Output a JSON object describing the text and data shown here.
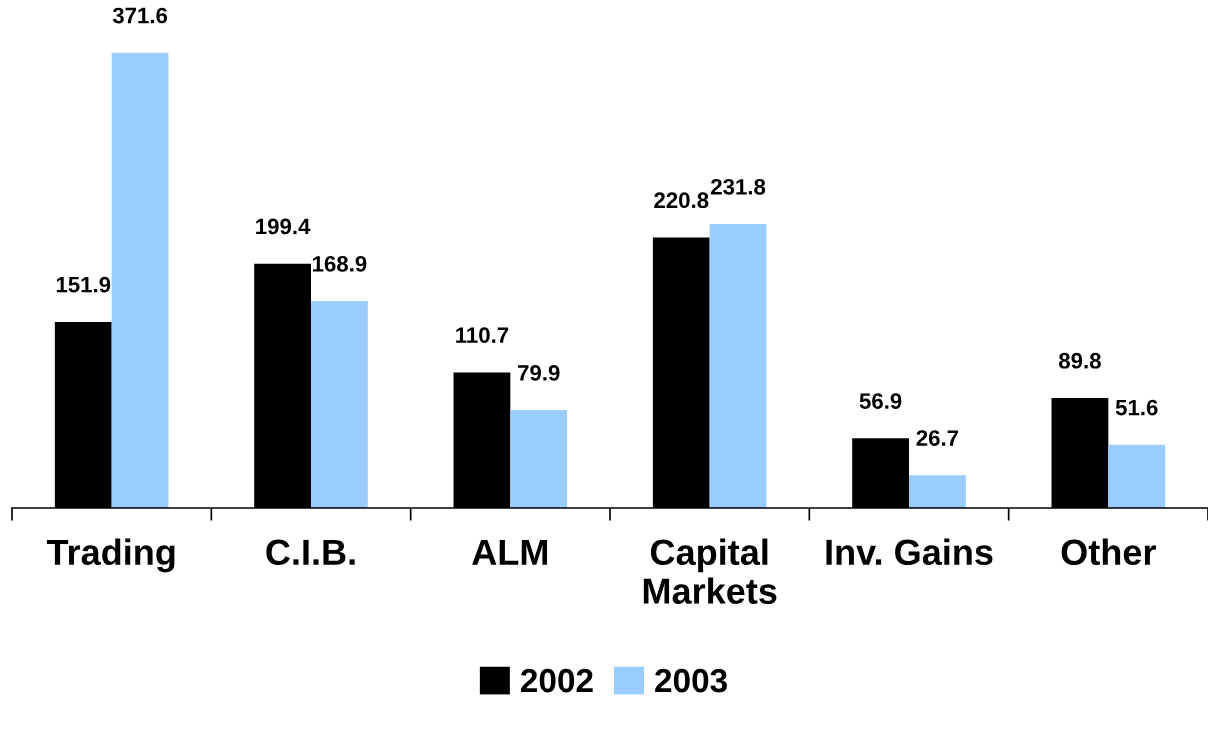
{
  "chart_data": {
    "type": "bar",
    "categories": [
      "Trading",
      "C.I.B.",
      "ALM",
      "Capital\nMarkets",
      "Inv. Gains",
      "Other"
    ],
    "series": [
      {
        "name": "2002",
        "color": "#000000",
        "values": [
          151.9,
          199.4,
          110.7,
          220.8,
          56.9,
          89.8
        ]
      },
      {
        "name": "2003",
        "color": "#99ccff",
        "values": [
          371.6,
          168.9,
          79.9,
          231.8,
          26.7,
          51.6
        ]
      }
    ],
    "data_labels": true,
    "legend": "bottom",
    "grid": false
  }
}
